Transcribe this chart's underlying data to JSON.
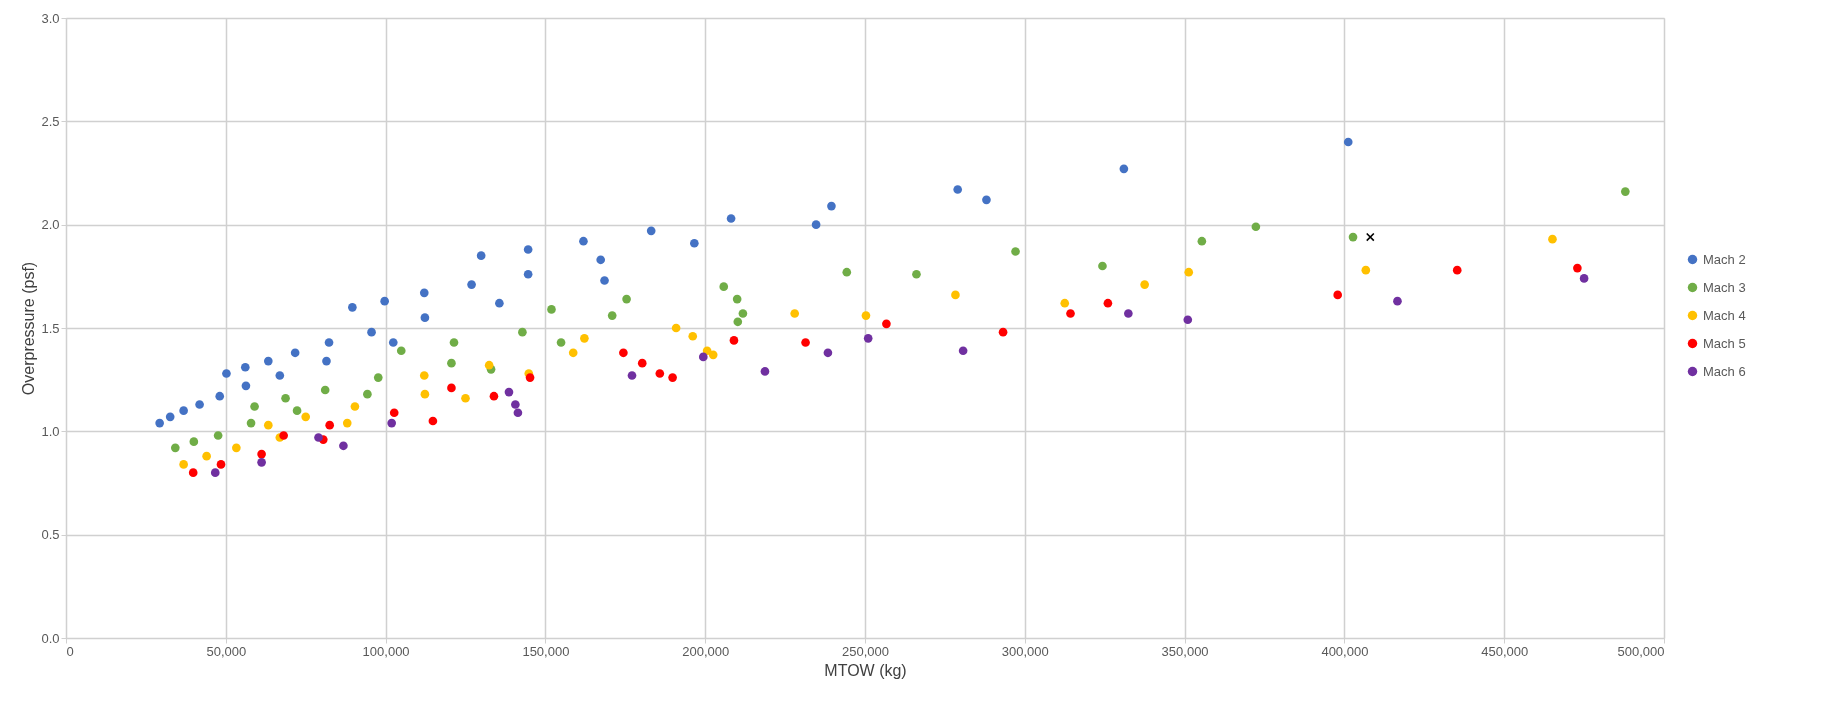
{
  "chart_data": {
    "type": "scatter",
    "xlabel": "MTOW (kg)",
    "ylabel": "Overpressure (psf)",
    "xlim": [
      0,
      500000
    ],
    "ylim": [
      0,
      3
    ],
    "xticks": [
      0,
      {
        "value": 50000,
        "label": "50,000"
      },
      {
        "value": 100000,
        "label": "100,000"
      },
      {
        "value": 150000,
        "label": "150,000"
      },
      {
        "value": 200000,
        "label": "200,000"
      },
      {
        "value": 250000,
        "label": "250,000"
      },
      {
        "value": 300000,
        "label": "300,000"
      },
      {
        "value": 350000,
        "label": "350,000"
      },
      {
        "value": 400000,
        "label": "400,000"
      },
      {
        "value": 450000,
        "label": "450,000"
      },
      {
        "value": 500000,
        "label": "500,000"
      }
    ],
    "yticks": [
      {
        "value": 0,
        "label": "0.0"
      },
      0.5,
      {
        "value": 1,
        "label": "1.0"
      },
      1.5,
      {
        "value": 2,
        "label": "2.0"
      },
      2.5,
      {
        "value": 3,
        "label": "3.0"
      }
    ],
    "grid": true,
    "legend": "right",
    "marker": "circle",
    "series": [
      {
        "name": "Mach 2",
        "color": "#4472c4",
        "x": [
          29300,
          32600,
          36800,
          41800,
          48100,
          50200,
          56300,
          56100,
          63300,
          66900,
          71700,
          81500,
          82300,
          89600,
          95600,
          99700,
          102400,
          112100,
          112300,
          126900,
          129900,
          135600,
          144600,
          144600,
          161900,
          167300,
          168500,
          183100,
          196600,
          208100,
          234700,
          239500,
          279000,
          288000,
          331000,
          401200
        ],
        "values": [
          1.04,
          1.07,
          1.1,
          1.13,
          1.17,
          1.28,
          1.22,
          1.31,
          1.34,
          1.27,
          1.38,
          1.34,
          1.43,
          1.6,
          1.48,
          1.63,
          1.43,
          1.67,
          1.55,
          1.71,
          1.85,
          1.62,
          1.88,
          1.76,
          1.92,
          1.83,
          1.73,
          1.97,
          1.91,
          2.03,
          2.0,
          2.09,
          2.17,
          2.12,
          2.27,
          2.4
        ]
      },
      {
        "name": "Mach 3",
        "color": "#70ad47",
        "x": [
          34200,
          40000,
          47600,
          57900,
          59000,
          68700,
          72300,
          81100,
          94300,
          97700,
          104900,
          120600,
          121400,
          133000,
          142800,
          151900,
          154900,
          170900,
          175400,
          205800,
          210000,
          211800,
          210200,
          244300,
          266100,
          297100,
          324300,
          355400,
          372300,
          402700,
          487900
        ],
        "values": [
          0.92,
          0.95,
          0.98,
          1.04,
          1.12,
          1.16,
          1.1,
          1.2,
          1.18,
          1.26,
          1.39,
          1.33,
          1.43,
          1.3,
          1.48,
          1.59,
          1.43,
          1.56,
          1.64,
          1.7,
          1.64,
          1.57,
          1.53,
          1.77,
          1.76,
          1.87,
          1.8,
          1.92,
          1.99,
          1.94,
          2.16
        ]
      },
      {
        "name": "Mach 4",
        "color": "#ffc000",
        "x": [
          36800,
          44000,
          53300,
          63300,
          66900,
          75000,
          88000,
          90400,
          112100,
          112300,
          125000,
          132400,
          144800,
          158700,
          162200,
          190900,
          196100,
          200600,
          202500,
          228000,
          250300,
          278300,
          312500,
          337500,
          351300,
          406700,
          465100
        ],
        "values": [
          0.84,
          0.88,
          0.92,
          1.03,
          0.97,
          1.07,
          1.04,
          1.12,
          1.27,
          1.18,
          1.16,
          1.32,
          1.28,
          1.38,
          1.45,
          1.5,
          1.46,
          1.39,
          1.37,
          1.57,
          1.56,
          1.66,
          1.62,
          1.71,
          1.77,
          1.78,
          1.93
        ]
      },
      {
        "name": "Mach 5",
        "color": "#ff0000",
        "x": [
          39800,
          48500,
          61200,
          68100,
          80500,
          82500,
          102700,
          114800,
          120600,
          133900,
          145200,
          174400,
          180300,
          185800,
          189800,
          209000,
          231400,
          256700,
          293200,
          314300,
          326000,
          397900,
          435300,
          472900
        ],
        "values": [
          0.8,
          0.84,
          0.89,
          0.98,
          0.96,
          1.03,
          1.09,
          1.05,
          1.21,
          1.17,
          1.26,
          1.38,
          1.33,
          1.28,
          1.26,
          1.44,
          1.43,
          1.52,
          1.48,
          1.57,
          1.62,
          1.66,
          1.78,
          1.79
        ]
      },
      {
        "name": "Mach 6",
        "color": "#7030a0",
        "x": [
          46700,
          61200,
          79000,
          86800,
          101900,
          138600,
          140600,
          141400,
          177100,
          199400,
          218700,
          238400,
          251000,
          280700,
          332400,
          351000,
          416600,
          475000
        ],
        "values": [
          0.8,
          0.85,
          0.97,
          0.93,
          1.04,
          1.19,
          1.13,
          1.09,
          1.27,
          1.36,
          1.29,
          1.38,
          1.45,
          1.39,
          1.57,
          1.54,
          1.63,
          1.74
        ]
      },
      {
        "color": "#000000",
        "marker": "cross",
        "x": [
          408100
        ],
        "values": [
          1.94
        ]
      }
    ]
  }
}
